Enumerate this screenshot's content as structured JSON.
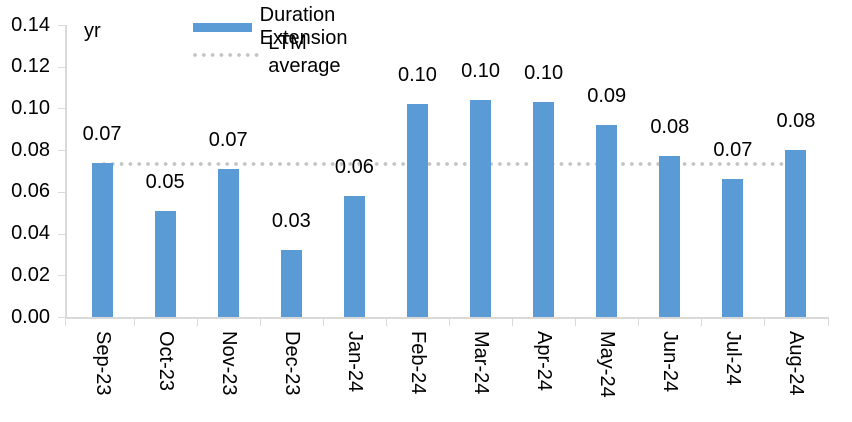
{
  "chart_data": {
    "type": "bar",
    "title": "",
    "unit_label": "yr",
    "categories": [
      "Sep-23",
      "Oct-23",
      "Nov-23",
      "Dec-23",
      "Jan-24",
      "Feb-24",
      "Mar-24",
      "Apr-24",
      "May-24",
      "Jun-24",
      "Jul-24",
      "Aug-24"
    ],
    "series": [
      {
        "name": "Duration Extension",
        "type": "bar",
        "color": "#5b9bd5",
        "values": [
          0.074,
          0.051,
          0.071,
          0.032,
          0.058,
          0.102,
          0.104,
          0.103,
          0.092,
          0.077,
          0.066,
          0.08
        ],
        "data_labels": [
          "0.07",
          "0.05",
          "0.07",
          "0.03",
          "0.06",
          "0.10",
          "0.10",
          "0.10",
          "0.09",
          "0.08",
          "0.07",
          "0.08"
        ]
      },
      {
        "name": "LTM average",
        "type": "line",
        "line_style": "dotted",
        "color": "#c3c3c3",
        "value": 0.0735
      }
    ],
    "y_axis": {
      "label": "yr",
      "min": 0,
      "max": 0.14,
      "tick_step": 0.02,
      "tick_labels": [
        "0.00",
        "0.02",
        "0.04",
        "0.06",
        "0.08",
        "0.10",
        "0.12",
        "0.14"
      ]
    },
    "x_axis": {
      "label_rotation_deg": 90
    },
    "legend": {
      "position": "top"
    },
    "grid": false,
    "colors": {
      "bar": "#5b9bd5",
      "ltm_line": "#c3c3c3",
      "axis": "#d9d9d9",
      "text": "#000000",
      "background": "#ffffff"
    }
  }
}
